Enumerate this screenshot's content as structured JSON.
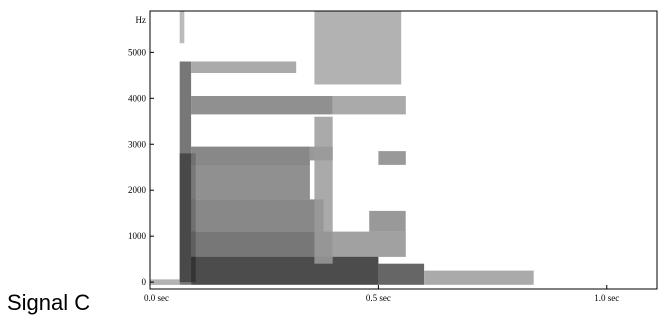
{
  "signal_label": "Signal C",
  "chart_data": {
    "type": "heatmap",
    "subtype": "spectrogram",
    "title": "",
    "xlabel": "",
    "ylabel": "",
    "y_unit_label": "Hz",
    "xlim": [
      0.0,
      1.11
    ],
    "ylim": [
      -150,
      5900
    ],
    "x_ticks": [
      {
        "value": 0.0,
        "label": "0.0 sec"
      },
      {
        "value": 0.5,
        "label": "0.5 sec"
      },
      {
        "value": 1.0,
        "label": "1.0 sec"
      }
    ],
    "y_ticks": [
      {
        "value": 0,
        "label": "0"
      },
      {
        "value": 1000,
        "label": "1000"
      },
      {
        "value": 2000,
        "label": "2000"
      },
      {
        "value": 3000,
        "label": "3000"
      },
      {
        "value": 4000,
        "label": "4000"
      },
      {
        "value": 5000,
        "label": "5000"
      }
    ],
    "grid": false,
    "colors": {
      "dark": "#222222",
      "mid": "#777777",
      "light": "#b8b8b8"
    },
    "cells": [
      {
        "t0": 0.0,
        "t1": 0.065,
        "f0": -60,
        "f1": 60,
        "level": 0.35
      },
      {
        "t0": 0.065,
        "t1": 0.09,
        "f0": -60,
        "f1": 4800,
        "level": 0.7
      },
      {
        "t0": 0.065,
        "t1": 0.1,
        "f0": 0,
        "f1": 2800,
        "level": 0.85
      },
      {
        "t0": 0.09,
        "t1": 0.32,
        "f0": 4550,
        "f1": 4800,
        "level": 0.4
      },
      {
        "t0": 0.09,
        "t1": 0.4,
        "f0": 3650,
        "f1": 4050,
        "level": 0.55
      },
      {
        "t0": 0.4,
        "t1": 0.56,
        "f0": 3650,
        "f1": 4050,
        "level": 0.4
      },
      {
        "t0": 0.09,
        "t1": 0.35,
        "f0": 2550,
        "f1": 2950,
        "level": 0.6
      },
      {
        "t0": 0.35,
        "t1": 0.4,
        "f0": 2650,
        "f1": 2950,
        "level": 0.5
      },
      {
        "t0": 0.5,
        "t1": 0.56,
        "f0": 2550,
        "f1": 2850,
        "level": 0.5
      },
      {
        "t0": 0.09,
        "t1": 0.35,
        "f0": 1800,
        "f1": 2550,
        "level": 0.55
      },
      {
        "t0": 0.09,
        "t1": 0.38,
        "f0": 1100,
        "f1": 1800,
        "level": 0.6
      },
      {
        "t0": 0.48,
        "t1": 0.56,
        "f0": 1100,
        "f1": 1550,
        "level": 0.5
      },
      {
        "t0": 0.09,
        "t1": 0.4,
        "f0": 550,
        "f1": 1100,
        "level": 0.7
      },
      {
        "t0": 0.4,
        "t1": 0.56,
        "f0": 550,
        "f1": 1100,
        "level": 0.45
      },
      {
        "t0": 0.09,
        "t1": 0.5,
        "f0": -60,
        "f1": 550,
        "level": 0.95
      },
      {
        "t0": 0.5,
        "t1": 0.6,
        "f0": -60,
        "f1": 400,
        "level": 0.8
      },
      {
        "t0": 0.6,
        "t1": 0.84,
        "f0": -60,
        "f1": 250,
        "level": 0.4
      },
      {
        "t0": 0.36,
        "t1": 0.55,
        "f0": 4300,
        "f1": 5900,
        "level": 0.35
      },
      {
        "t0": 0.36,
        "t1": 0.4,
        "f0": 400,
        "f1": 3600,
        "level": 0.4
      },
      {
        "t0": 0.065,
        "t1": 0.075,
        "f0": 5200,
        "f1": 5900,
        "level": 0.3
      }
    ]
  }
}
